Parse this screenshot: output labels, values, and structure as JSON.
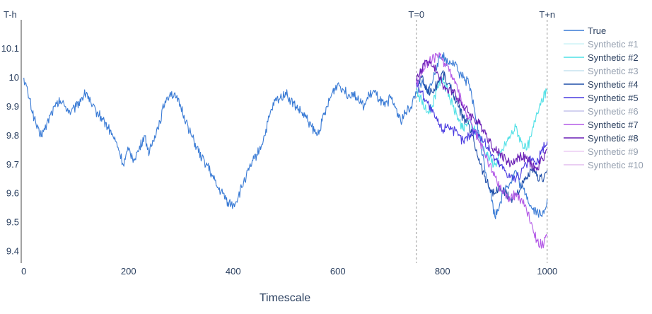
{
  "chart_data": {
    "type": "line",
    "xlabel": "Timescale",
    "ylabel": "",
    "xlim": [
      -5,
      1003
    ],
    "ylim": [
      9.36,
      10.2
    ],
    "xticks": [
      0,
      200,
      400,
      600,
      800,
      1000
    ],
    "yticks": [
      9.4,
      9.5,
      9.6,
      9.7,
      9.8,
      9.9,
      10,
      10.1
    ],
    "ytick_labels": [
      "9.4",
      "9.5",
      "9.6",
      "9.7",
      "9.8",
      "9.9",
      "10",
      "10.1"
    ],
    "grid": false,
    "legend_position": "right",
    "markers": [
      {
        "label": "T-h",
        "x": 0,
        "line": false
      },
      {
        "label": "T=0",
        "x": 750,
        "line": true
      },
      {
        "label": "T+n",
        "x": 1000,
        "line": true
      }
    ],
    "series": [
      {
        "name": "True",
        "color": "#3a7bd5",
        "visible": true,
        "points": [
          [
            0,
            10.0
          ],
          [
            10,
            9.93
          ],
          [
            20,
            9.86
          ],
          [
            30,
            9.8
          ],
          [
            40,
            9.82
          ],
          [
            50,
            9.87
          ],
          [
            60,
            9.9
          ],
          [
            70,
            9.92
          ],
          [
            80,
            9.9
          ],
          [
            90,
            9.88
          ],
          [
            100,
            9.9
          ],
          [
            110,
            9.93
          ],
          [
            120,
            9.95
          ],
          [
            130,
            9.9
          ],
          [
            140,
            9.88
          ],
          [
            150,
            9.86
          ],
          [
            160,
            9.83
          ],
          [
            170,
            9.8
          ],
          [
            180,
            9.76
          ],
          [
            190,
            9.7
          ],
          [
            200,
            9.75
          ],
          [
            210,
            9.72
          ],
          [
            220,
            9.75
          ],
          [
            230,
            9.8
          ],
          [
            240,
            9.74
          ],
          [
            250,
            9.8
          ],
          [
            260,
            9.85
          ],
          [
            270,
            9.92
          ],
          [
            280,
            9.95
          ],
          [
            290,
            9.93
          ],
          [
            300,
            9.9
          ],
          [
            310,
            9.85
          ],
          [
            320,
            9.8
          ],
          [
            330,
            9.76
          ],
          [
            340,
            9.72
          ],
          [
            350,
            9.7
          ],
          [
            360,
            9.66
          ],
          [
            370,
            9.62
          ],
          [
            380,
            9.6
          ],
          [
            390,
            9.57
          ],
          [
            400,
            9.56
          ],
          [
            410,
            9.59
          ],
          [
            420,
            9.64
          ],
          [
            430,
            9.68
          ],
          [
            440,
            9.72
          ],
          [
            450,
            9.75
          ],
          [
            460,
            9.8
          ],
          [
            470,
            9.87
          ],
          [
            480,
            9.92
          ],
          [
            490,
            9.93
          ],
          [
            500,
            9.95
          ],
          [
            510,
            9.92
          ],
          [
            520,
            9.9
          ],
          [
            530,
            9.88
          ],
          [
            540,
            9.86
          ],
          [
            550,
            9.83
          ],
          [
            560,
            9.8
          ],
          [
            570,
            9.85
          ],
          [
            580,
            9.9
          ],
          [
            590,
            9.95
          ],
          [
            600,
            9.98
          ],
          [
            610,
            9.96
          ],
          [
            620,
            9.94
          ],
          [
            630,
            9.95
          ],
          [
            640,
            9.92
          ],
          [
            650,
            9.9
          ],
          [
            660,
            9.94
          ],
          [
            670,
            9.95
          ],
          [
            680,
            9.92
          ],
          [
            690,
            9.9
          ],
          [
            700,
            9.93
          ],
          [
            710,
            9.9
          ],
          [
            720,
            9.85
          ],
          [
            730,
            9.88
          ],
          [
            740,
            9.9
          ],
          [
            750,
            9.95
          ],
          [
            760,
            9.98
          ],
          [
            770,
            9.95
          ],
          [
            780,
            9.98
          ],
          [
            790,
            10.05
          ],
          [
            800,
            10.08
          ],
          [
            810,
            10.05
          ],
          [
            820,
            10.06
          ],
          [
            830,
            10.02
          ],
          [
            840,
            10.0
          ],
          [
            850,
            9.98
          ],
          [
            860,
            9.9
          ],
          [
            870,
            9.8
          ],
          [
            880,
            9.7
          ],
          [
            890,
            9.62
          ],
          [
            900,
            9.52
          ],
          [
            910,
            9.57
          ],
          [
            920,
            9.62
          ],
          [
            930,
            9.64
          ],
          [
            940,
            9.68
          ],
          [
            950,
            9.62
          ],
          [
            960,
            9.6
          ],
          [
            970,
            9.55
          ],
          [
            980,
            9.54
          ],
          [
            990,
            9.52
          ],
          [
            1000,
            9.58
          ]
        ]
      },
      {
        "name": "Synthetic #1",
        "color": "#9fe7f0",
        "visible": false,
        "points": []
      },
      {
        "name": "Synthetic #2",
        "color": "#4fe0e6",
        "visible": true,
        "points": [
          [
            750,
            9.96
          ],
          [
            760,
            9.92
          ],
          [
            770,
            9.88
          ],
          [
            780,
            9.9
          ],
          [
            790,
            9.97
          ],
          [
            800,
            10.0
          ],
          [
            810,
            9.95
          ],
          [
            820,
            9.9
          ],
          [
            830,
            9.86
          ],
          [
            840,
            9.82
          ],
          [
            850,
            9.85
          ],
          [
            860,
            9.82
          ],
          [
            870,
            9.8
          ],
          [
            880,
            9.75
          ],
          [
            890,
            9.72
          ],
          [
            900,
            9.7
          ],
          [
            910,
            9.73
          ],
          [
            920,
            9.77
          ],
          [
            930,
            9.8
          ],
          [
            940,
            9.83
          ],
          [
            950,
            9.78
          ],
          [
            960,
            9.75
          ],
          [
            970,
            9.8
          ],
          [
            980,
            9.88
          ],
          [
            990,
            9.93
          ],
          [
            1000,
            9.95
          ]
        ]
      },
      {
        "name": "Synthetic #3",
        "color": "#8ec8e0",
        "visible": false,
        "points": []
      },
      {
        "name": "Synthetic #4",
        "color": "#1f4ea8",
        "visible": true,
        "points": [
          [
            750,
            9.98
          ],
          [
            760,
            10.0
          ],
          [
            770,
            9.96
          ],
          [
            780,
            9.95
          ],
          [
            790,
            9.98
          ],
          [
            800,
            10.02
          ],
          [
            810,
            9.98
          ],
          [
            820,
            9.95
          ],
          [
            830,
            9.9
          ],
          [
            840,
            9.86
          ],
          [
            850,
            9.84
          ],
          [
            860,
            9.78
          ],
          [
            870,
            9.72
          ],
          [
            880,
            9.66
          ],
          [
            890,
            9.62
          ],
          [
            900,
            9.6
          ],
          [
            910,
            9.62
          ],
          [
            920,
            9.6
          ],
          [
            930,
            9.58
          ],
          [
            940,
            9.6
          ],
          [
            950,
            9.62
          ],
          [
            960,
            9.65
          ],
          [
            970,
            9.68
          ],
          [
            980,
            9.66
          ],
          [
            990,
            9.65
          ],
          [
            1000,
            9.68
          ]
        ]
      },
      {
        "name": "Synthetic #5",
        "color": "#4a3be0",
        "visible": true,
        "points": [
          [
            750,
            9.98
          ],
          [
            760,
            9.95
          ],
          [
            770,
            9.92
          ],
          [
            780,
            9.88
          ],
          [
            790,
            9.85
          ],
          [
            800,
            9.82
          ],
          [
            810,
            9.84
          ],
          [
            820,
            9.82
          ],
          [
            830,
            9.8
          ],
          [
            840,
            9.78
          ],
          [
            850,
            9.8
          ],
          [
            860,
            9.82
          ],
          [
            870,
            9.8
          ],
          [
            880,
            9.78
          ],
          [
            890,
            9.75
          ],
          [
            900,
            9.72
          ],
          [
            910,
            9.7
          ],
          [
            920,
            9.68
          ],
          [
            930,
            9.66
          ],
          [
            940,
            9.65
          ],
          [
            950,
            9.67
          ],
          [
            960,
            9.7
          ],
          [
            970,
            9.72
          ],
          [
            980,
            9.7
          ],
          [
            990,
            9.75
          ],
          [
            1000,
            9.78
          ]
        ]
      },
      {
        "name": "Synthetic #6",
        "color": "#8a86d8",
        "visible": false,
        "points": []
      },
      {
        "name": "Synthetic #7",
        "color": "#b35ae6",
        "visible": true,
        "points": [
          [
            750,
            9.98
          ],
          [
            760,
            10.02
          ],
          [
            770,
            10.05
          ],
          [
            780,
            10.06
          ],
          [
            790,
            10.08
          ],
          [
            800,
            10.06
          ],
          [
            810,
            10.04
          ],
          [
            820,
            10.0
          ],
          [
            830,
            9.95
          ],
          [
            840,
            9.9
          ],
          [
            850,
            9.86
          ],
          [
            860,
            9.82
          ],
          [
            870,
            9.78
          ],
          [
            880,
            9.74
          ],
          [
            890,
            9.7
          ],
          [
            900,
            9.66
          ],
          [
            910,
            9.62
          ],
          [
            920,
            9.6
          ],
          [
            930,
            9.58
          ],
          [
            940,
            9.6
          ],
          [
            950,
            9.58
          ],
          [
            960,
            9.55
          ],
          [
            970,
            9.5
          ],
          [
            980,
            9.44
          ],
          [
            990,
            9.42
          ],
          [
            1000,
            9.45
          ]
        ]
      },
      {
        "name": "Synthetic #8",
        "color": "#6a1fb5",
        "visible": true,
        "points": [
          [
            750,
            9.99
          ],
          [
            760,
            10.03
          ],
          [
            770,
            10.06
          ],
          [
            780,
            10.04
          ],
          [
            790,
            10.02
          ],
          [
            800,
            9.98
          ],
          [
            810,
            9.95
          ],
          [
            820,
            9.96
          ],
          [
            830,
            9.93
          ],
          [
            840,
            9.9
          ],
          [
            850,
            9.88
          ],
          [
            860,
            9.86
          ],
          [
            870,
            9.84
          ],
          [
            880,
            9.82
          ],
          [
            890,
            9.78
          ],
          [
            900,
            9.75
          ],
          [
            910,
            9.74
          ],
          [
            920,
            9.72
          ],
          [
            930,
            9.7
          ],
          [
            940,
            9.72
          ],
          [
            950,
            9.73
          ],
          [
            960,
            9.72
          ],
          [
            970,
            9.7
          ],
          [
            980,
            9.68
          ],
          [
            990,
            9.72
          ],
          [
            1000,
            9.75
          ]
        ]
      },
      {
        "name": "Synthetic #9",
        "color": "#d99ae8",
        "visible": false,
        "points": []
      },
      {
        "name": "Synthetic #10",
        "color": "#c77ee0",
        "visible": false,
        "points": []
      }
    ]
  }
}
